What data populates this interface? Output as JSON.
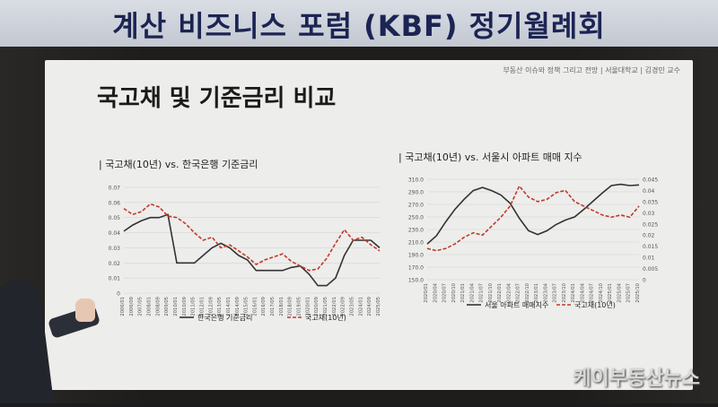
{
  "banner": {
    "title": "계산 비즈니스 포럼 (KBF) 정기월례회"
  },
  "slide": {
    "source": "부동산 이슈와 정책 그리고 전망 | 서울대학교 | 김경민 교수",
    "title": "국고채 및 기준금리 비교"
  },
  "watermark": "케이부동산뉴스",
  "chart_data": [
    {
      "type": "line",
      "title": "| 국고채(10년) vs. 한국은행 기준금리",
      "x": [
        "2006/01",
        "2006/09",
        "2007/05",
        "2008/01",
        "2008/09",
        "2009/05",
        "2010/01",
        "2010/09",
        "2011/05",
        "2012/01",
        "2012/09",
        "2013/05",
        "2014/01",
        "2014/09",
        "2015/05",
        "2016/01",
        "2016/09",
        "2017/05",
        "2018/01",
        "2018/09",
        "2019/05",
        "2020/01",
        "2020/09",
        "2021/05",
        "2022/01",
        "2022/09",
        "2023/05",
        "2024/01",
        "2024/09",
        "2025/05"
      ],
      "ylim": [
        0,
        0.07
      ],
      "yticks": [
        "0",
        "0.01",
        "0.02",
        "0.03",
        "0.04",
        "0.05",
        "0.06",
        "0.07"
      ],
      "series": [
        {
          "name": "한국은행 기준금리",
          "color": "#333333",
          "style": "solid",
          "values": [
            0.041,
            0.045,
            0.048,
            0.05,
            0.05,
            0.052,
            0.02,
            0.02,
            0.02,
            0.025,
            0.03,
            0.033,
            0.03,
            0.025,
            0.022,
            0.015,
            0.015,
            0.015,
            0.015,
            0.017,
            0.018,
            0.0125,
            0.005,
            0.005,
            0.01,
            0.025,
            0.035,
            0.035,
            0.035,
            0.03
          ]
        },
        {
          "name": "국고채(10년)",
          "color": "#c0392b",
          "style": "dashed",
          "values": [
            0.056,
            0.052,
            0.054,
            0.059,
            0.057,
            0.051,
            0.05,
            0.046,
            0.04,
            0.035,
            0.037,
            0.03,
            0.032,
            0.028,
            0.024,
            0.019,
            0.022,
            0.024,
            0.026,
            0.021,
            0.018,
            0.015,
            0.016,
            0.023,
            0.033,
            0.042,
            0.035,
            0.037,
            0.032,
            0.028
          ]
        }
      ],
      "legend_position": "bottom"
    },
    {
      "type": "line",
      "title": "| 국고채(10년) vs. 서울시 아파트 매매 지수",
      "x": [
        "2020/01",
        "2020/04",
        "2020/07",
        "2020/10",
        "2021/01",
        "2021/04",
        "2021/07",
        "2021/10",
        "2022/01",
        "2022/04",
        "2022/07",
        "2022/10",
        "2023/01",
        "2023/04",
        "2023/07",
        "2023/10",
        "2024/01",
        "2024/04",
        "2024/07",
        "2024/10",
        "2025/01",
        "2025/04",
        "2025/07",
        "2025/10"
      ],
      "ylim_left": [
        150,
        310
      ],
      "yticks_left": [
        "150.0",
        "170.0",
        "190.0",
        "210.0",
        "230.0",
        "250.0",
        "270.0",
        "290.0",
        "310.0"
      ],
      "ylim_right": [
        0,
        0.045
      ],
      "yticks_right": [
        "0",
        "0.005",
        "0.01",
        "0.015",
        "0.02",
        "0.025",
        "0.03",
        "0.035",
        "0.04",
        "0.045"
      ],
      "series": [
        {
          "name": "서울 아파트 매매지수",
          "axis": "left",
          "color": "#333333",
          "style": "solid",
          "values": [
            207,
            220,
            242,
            262,
            278,
            292,
            297,
            292,
            285,
            272,
            248,
            228,
            222,
            228,
            238,
            245,
            250,
            262,
            275,
            288,
            300,
            302,
            300,
            301
          ]
        },
        {
          "name": "국고채(10년)",
          "axis": "right",
          "color": "#c0392b",
          "style": "dashed",
          "values": [
            0.014,
            0.013,
            0.014,
            0.016,
            0.019,
            0.021,
            0.02,
            0.024,
            0.028,
            0.033,
            0.042,
            0.037,
            0.035,
            0.036,
            0.039,
            0.04,
            0.035,
            0.033,
            0.031,
            0.029,
            0.028,
            0.029,
            0.028,
            0.033
          ]
        }
      ],
      "legend_position": "bottom"
    }
  ]
}
